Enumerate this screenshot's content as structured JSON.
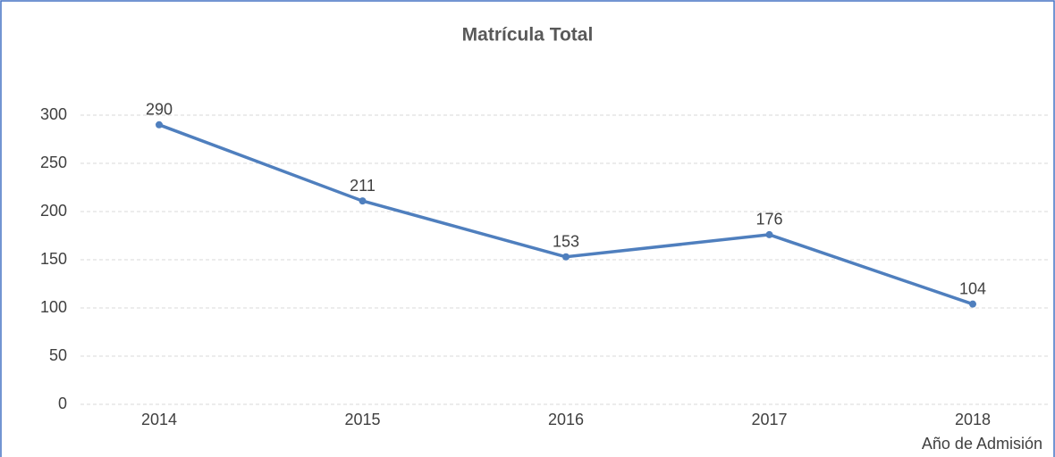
{
  "chart_data": {
    "type": "line",
    "title": "Matrícula Total",
    "x_label": "Año de Admisión",
    "categories": [
      "2014",
      "2015",
      "2016",
      "2017",
      "2018"
    ],
    "series": [
      {
        "name": "Matrícula Total",
        "color": "#4f7fbe",
        "values": [
          290,
          211,
          153,
          176,
          104
        ]
      }
    ],
    "ylim": [
      0,
      300
    ],
    "yticks": [
      0,
      50,
      100,
      150,
      200,
      250,
      300
    ],
    "grid": true,
    "data_labels": true
  }
}
